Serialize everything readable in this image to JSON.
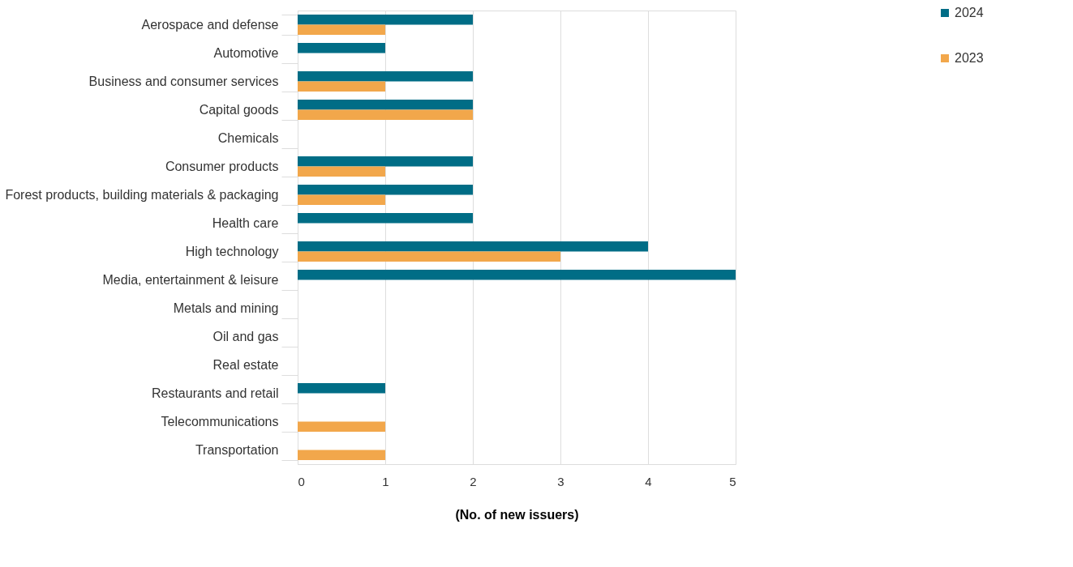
{
  "chart_data": {
    "type": "bar",
    "orientation": "horizontal",
    "xlabel": "(No. of new issuers)",
    "categories": [
      "Aerospace and defense",
      "Automotive",
      "Business and consumer services",
      "Capital goods",
      "Chemicals",
      "Consumer products",
      "Forest products, building materials & packaging",
      "Health care",
      "High technology",
      "Media, entertainment & leisure",
      "Metals and mining",
      "Oil and gas",
      "Real estate",
      "Restaurants and retail",
      "Telecommunications",
      "Transportation"
    ],
    "series": [
      {
        "name": "2024",
        "color": "#006d86",
        "values": [
          2,
          1,
          2,
          2,
          0,
          2,
          2,
          2,
          4,
          5,
          0,
          0,
          0,
          1,
          0,
          0
        ]
      },
      {
        "name": "2023",
        "color": "#f2a74b",
        "values": [
          1,
          0,
          1,
          2,
          0,
          1,
          1,
          0,
          3,
          0,
          0,
          0,
          0,
          0,
          1,
          1
        ]
      }
    ],
    "xlim": [
      0,
      5
    ],
    "xticks": [
      0,
      1,
      2,
      3,
      4,
      5
    ],
    "grid": "x",
    "legend": "top right"
  }
}
